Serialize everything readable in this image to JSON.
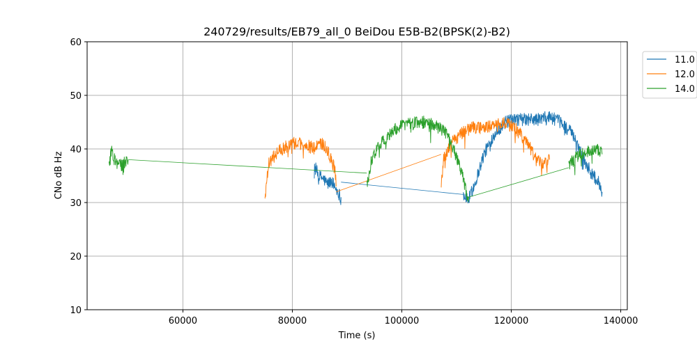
{
  "chart_data": {
    "type": "line",
    "title": "240729/results/EB79_all_0 BeiDou E5B-B2(BPSK(2)-B2)",
    "xlabel": "Time (s)",
    "ylabel": "CNo dB Hz",
    "xlim": [
      42500,
      141200
    ],
    "ylim": [
      10,
      60
    ],
    "x_ticks": [
      60000,
      80000,
      100000,
      120000,
      140000
    ],
    "y_ticks": [
      10,
      20,
      30,
      40,
      50,
      60
    ],
    "grid": true,
    "legend_position": "outside-top-right",
    "series": [
      {
        "name": "11.0",
        "color": "#1f77b4",
        "segments": [
          {
            "x": [
              84000,
              84800,
              85600,
              86400,
              87200,
              88000,
              88900
            ],
            "y": [
              37,
              35,
              34.5,
              33.5,
              34,
              32.5,
              31
            ]
          },
          {
            "x": [
              88900,
              111200
            ],
            "y": [
              33.8,
              31.5
            ]
          },
          {
            "x": [
              111200,
              112200,
              113500,
              115000,
              117000,
              119000,
              121000,
              123000,
              125000,
              127000,
              129000,
              131000,
              132500,
              133800,
              135000,
              136100,
              136600
            ],
            "y": [
              31.5,
              30.5,
              34,
              39,
              43,
              45,
              45.5,
              45.5,
              45.5,
              46,
              45,
              43,
              40,
              37,
              35,
              33.5,
              32
            ]
          }
        ]
      },
      {
        "name": "12.0",
        "color": "#ff7f0e",
        "segments": [
          {
            "x": [
              75000,
              75600,
              76500,
              78000,
              80000,
              82000,
              84000,
              85500,
              86800,
              87800,
              88000
            ],
            "y": [
              31,
              37,
              38.5,
              40,
              41,
              41,
              40,
              41,
              39,
              36,
              33
            ]
          },
          {
            "x": [
              88000,
              107200
            ],
            "y": [
              32,
              39
            ]
          },
          {
            "x": [
              107200,
              107600,
              109000,
              111000,
              113000,
              115000,
              117000,
              119000,
              121000,
              123000,
              124500,
              126000,
              127000
            ],
            "y": [
              33,
              38,
              41,
              43,
              44,
              44,
              44.5,
              45,
              43.5,
              41,
              38,
              37,
              38
            ]
          }
        ]
      },
      {
        "name": "14.0",
        "color": "#2ca02c",
        "segments": [
          {
            "x": [
              46500,
              47000,
              47500,
              48200,
              49000,
              50000
            ],
            "y": [
              37,
              40,
              38,
              37,
              37,
              38
            ]
          },
          {
            "x": [
              50000,
              93600
            ],
            "y": [
              38,
              35.5
            ]
          },
          {
            "x": [
              93600,
              94500,
              96000,
              98000,
              100000,
              102000,
              104000,
              106000,
              108000,
              109500,
              110800,
              111800,
              112200
            ],
            "y": [
              33,
              38,
              41,
              43,
              44.5,
              45,
              45,
              44.5,
              43,
              40,
              36,
              32,
              31
            ]
          },
          {
            "x": [
              112200,
              130500
            ],
            "y": [
              31,
              36.5
            ]
          },
          {
            "x": [
              130500,
              131500,
              132500,
              134000,
              135500,
              136600
            ],
            "y": [
              37,
              38,
              39,
              39.5,
              40,
              39
            ]
          }
        ]
      }
    ]
  }
}
